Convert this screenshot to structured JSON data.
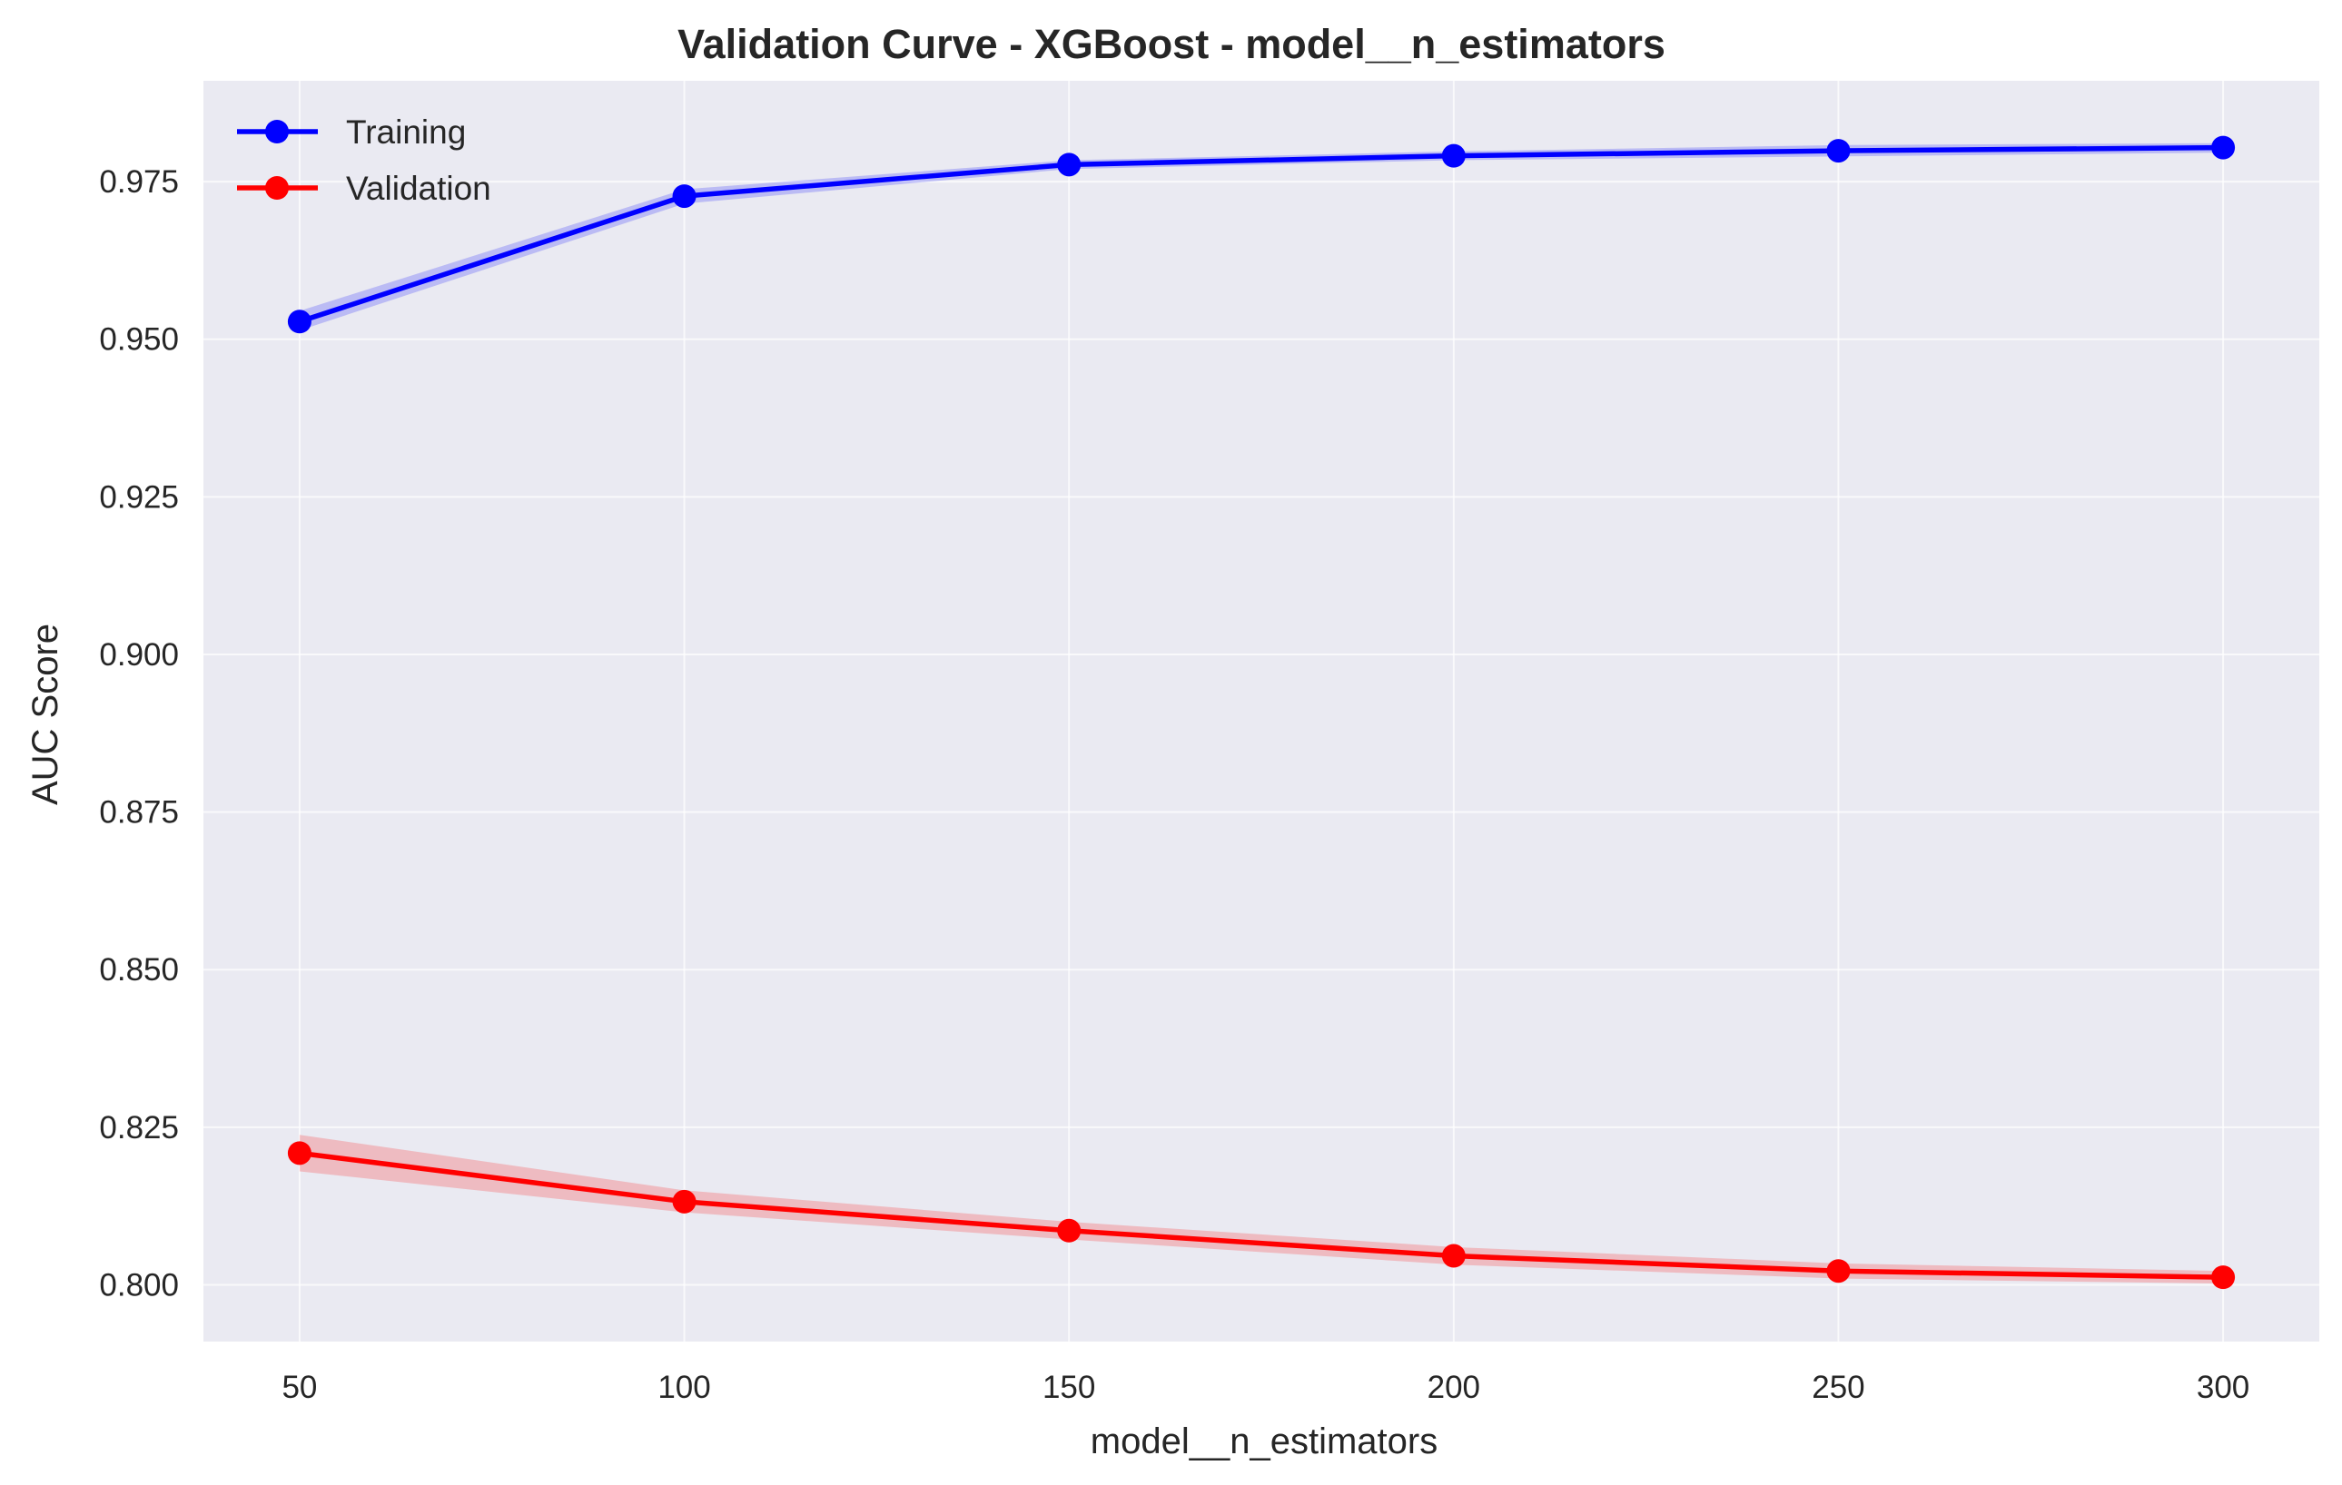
{
  "chart_data": {
    "type": "line",
    "title": "Validation Curve - XGBoost - model__n_estimators",
    "xlabel": "model__n_estimators",
    "ylabel": "AUC Score",
    "x": [
      50,
      100,
      150,
      200,
      250,
      300
    ],
    "xlim": [
      37.5,
      312.5
    ],
    "ylim": [
      0.791,
      0.991
    ],
    "xticks": [
      50,
      100,
      150,
      200,
      250,
      300
    ],
    "yticks": [
      0.8,
      0.825,
      0.85,
      0.875,
      0.9,
      0.925,
      0.95,
      0.975
    ],
    "ytick_labels": [
      "0.800",
      "0.825",
      "0.850",
      "0.875",
      "0.900",
      "0.925",
      "0.950",
      "0.975"
    ],
    "grid": true,
    "legend_position": "top-left",
    "background_color": "#eaeaf2",
    "grid_color": "#ffffff",
    "series": [
      {
        "name": "Training",
        "color": "#0000ff",
        "values": [
          0.9528,
          0.9727,
          0.9777,
          0.9791,
          0.9799,
          0.9804
        ],
        "band_lower": [
          0.9514,
          0.9715,
          0.977,
          0.9784,
          0.979,
          0.9796
        ],
        "band_upper": [
          0.9545,
          0.9738,
          0.9784,
          0.9798,
          0.9808,
          0.9811
        ]
      },
      {
        "name": "Validation",
        "color": "#ff0000",
        "values": [
          0.8209,
          0.8132,
          0.8086,
          0.8046,
          0.8022,
          0.8012
        ],
        "band_lower": [
          0.818,
          0.8115,
          0.8072,
          0.8032,
          0.801,
          0.8002
        ],
        "band_upper": [
          0.8238,
          0.815,
          0.81,
          0.806,
          0.8034,
          0.8022
        ]
      }
    ]
  }
}
